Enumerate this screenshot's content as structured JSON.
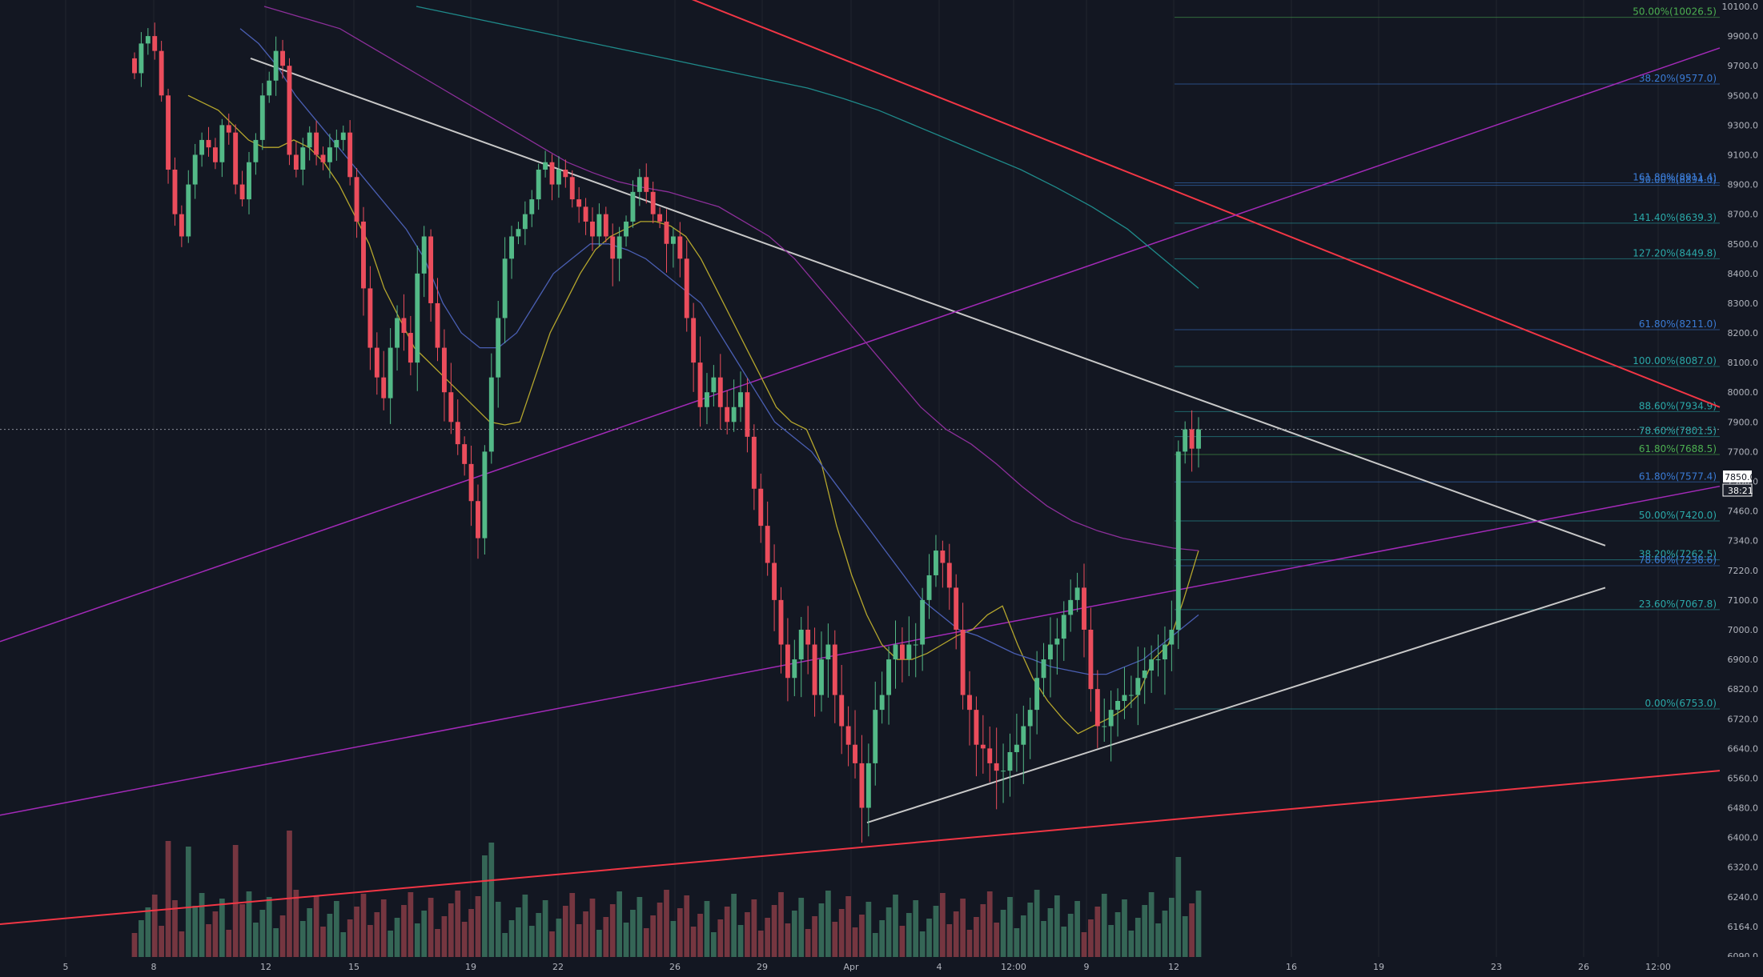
{
  "colors": {
    "background": "#131722",
    "bull": "#53b987",
    "bear": "#eb4d5c",
    "volume_bull": "#3e7a64",
    "volume_bear": "#8f3e49",
    "grid": "#2a2e39",
    "trendline": "#c8c8c8",
    "channel_red": "#f23645",
    "channel_purple": "#a32ab8",
    "ma_fast": "#b5a62d",
    "ma_mid": "#4a5fb3",
    "ma_slow": "#8c2f9a",
    "ma_long": "#1f8a8a",
    "fib_blue": "#3a7bd5",
    "fib_teal": "#2aa8a8",
    "fib_green": "#4caf50",
    "axis_text": "#b2b5be",
    "price_tag_bg": "#ffffff"
  },
  "chart_data": {
    "type": "candlestick",
    "title": "",
    "xlabel": "",
    "ylabel": "",
    "ylim": [
      6090,
      10100
    ],
    "x_tick_labels": [
      "5",
      "8",
      "12",
      "15",
      "19",
      "22",
      "26",
      "29",
      "Apr",
      "4",
      "12:00",
      "9",
      "12",
      "16",
      "19",
      "23",
      "26",
      "12:00"
    ],
    "y_tick_labels": [
      "10100.0",
      "9900.0",
      "9700.0",
      "9500.0",
      "9300.0",
      "9100.0",
      "8900.0",
      "8700.0",
      "8500.0",
      "8400.0",
      "8300.0",
      "8200.0",
      "8100.0",
      "8000.0",
      "7900.0",
      "7700.0",
      "7580.0",
      "7460.0",
      "7340.0",
      "7220.0",
      "7100.0",
      "7000.0",
      "6900.0",
      "6820.0",
      "6720.0",
      "6640.0",
      "6560.0",
      "6480.0",
      "6400.0",
      "6320.0",
      "6240.0",
      "6164.0",
      "6090.0"
    ],
    "last_price": "7850.0",
    "countdown": "38:21",
    "candles_close": [
      9650,
      9850,
      9900,
      9800,
      9500,
      9000,
      8700,
      8550,
      8900,
      9100,
      9200,
      9150,
      9050,
      9300,
      9250,
      8900,
      8800,
      9050,
      9200,
      9500,
      9600,
      9800,
      9700,
      9100,
      9000,
      9150,
      9250,
      9100,
      9050,
      9150,
      9200,
      9250,
      8950,
      8650,
      8350,
      8150,
      8050,
      7980,
      8150,
      8250,
      8200,
      8100,
      8400,
      8550,
      8300,
      8150,
      8000,
      7900,
      7750,
      7650,
      7500,
      7350,
      7700,
      8050,
      8250,
      8450,
      8550,
      8600,
      8700,
      8800,
      9000,
      9050,
      8900,
      9000,
      8950,
      8800,
      8750,
      8650,
      8550,
      8700,
      8550,
      8450,
      8550,
      8650,
      8850,
      8950,
      8850,
      8700,
      8650,
      8500,
      8550,
      8450,
      8250,
      8100,
      7950,
      8000,
      8050,
      7950,
      7900,
      7950,
      8000,
      7800,
      7550,
      7400,
      7250,
      7100,
      6950,
      6850,
      6900,
      7000,
      6950,
      6800,
      6900,
      6950,
      6800,
      6700,
      6650,
      6600,
      6480,
      6600,
      6750,
      6800,
      6900,
      6950,
      6900,
      6950,
      6950,
      7100,
      7200,
      7300,
      7250,
      7150,
      7000,
      6800,
      6750,
      6650,
      6640,
      6600,
      6580,
      6580,
      6630,
      6650,
      6700,
      6750,
      6850,
      6900,
      6950,
      6970,
      7050,
      7100,
      7150,
      7000,
      6820,
      6700,
      6700,
      6750,
      6780,
      6800,
      6800,
      6850,
      6870,
      6900,
      6900,
      6950,
      7000,
      7700,
      7850,
      7720,
      7850
    ],
    "series": [
      {
        "name": "",
        "kind": "ma_fast",
        "values": [
          9500,
          9450,
          9400,
          9300,
          9200,
          9150,
          9150,
          9200,
          9150,
          9050,
          8900,
          8700,
          8500,
          8350,
          8250,
          8150,
          8100,
          8050,
          8000,
          7950,
          7900,
          7880,
          7900,
          8050,
          8200,
          8300,
          8400,
          8480,
          8550,
          8600,
          8650,
          8650,
          8620,
          8550,
          8450,
          8350,
          8250,
          8150,
          8050,
          7950,
          7900,
          7850,
          7650,
          7400,
          7200,
          7050,
          6950,
          6900,
          6900,
          6920,
          6950,
          6980,
          7000,
          7050,
          7080,
          6950,
          6850,
          6780,
          6720,
          6680,
          6700,
          6720,
          6750,
          6800,
          6900,
          6950,
          7100,
          7300
        ]
      },
      {
        "name": "",
        "kind": "ma_mid",
        "values": [
          9950,
          9850,
          9700,
          9500,
          9350,
          9200,
          9050,
          8900,
          8750,
          8600,
          8450,
          8300,
          8200,
          8150,
          8150,
          8200,
          8300,
          8400,
          8450,
          8500,
          8500,
          8480,
          8450,
          8400,
          8350,
          8300,
          8200,
          8100,
          8000,
          7900,
          7800,
          7700,
          7600,
          7500,
          7400,
          7300,
          7200,
          7100,
          7050,
          7000,
          6980,
          6950,
          6920,
          6900,
          6880,
          6870,
          6860,
          6860,
          6880,
          6900,
          6950,
          7000,
          7050
        ]
      },
      {
        "name": "",
        "kind": "ma_slow",
        "values": [
          10100,
          10050,
          10000,
          9950,
          9850,
          9750,
          9650,
          9550,
          9450,
          9350,
          9250,
          9150,
          9050,
          8980,
          8920,
          8880,
          8850,
          8800,
          8750,
          8650,
          8550,
          8450,
          8350,
          8250,
          8150,
          8050,
          7950,
          7850,
          7750,
          7650,
          7560,
          7480,
          7420,
          7380,
          7350,
          7330,
          7310,
          7300
        ]
      },
      {
        "name": "",
        "kind": "ma_long",
        "values": [
          10100,
          10050,
          10000,
          9950,
          9900,
          9850,
          9800,
          9750,
          9700,
          9650,
          9600,
          9550,
          9480,
          9400,
          9300,
          9200,
          9100,
          9000,
          8880,
          8750,
          8600,
          8450,
          8350
        ]
      }
    ],
    "trendlines": [
      {
        "kind": "descending_white",
        "from_price": 9750,
        "to_price": 7320
      },
      {
        "kind": "ascending_white",
        "from_price": 6440,
        "to_price": 7150
      },
      {
        "kind": "red_down_main",
        "from_price": 10200,
        "to_price": 7950
      },
      {
        "kind": "red_up_main",
        "from_price": 6170,
        "to_price": 6580
      },
      {
        "kind": "purple_upper",
        "from_price": 6960,
        "to_price": 9820
      },
      {
        "kind": "purple_lower",
        "from_price": 6460,
        "to_price": 7560
      }
    ],
    "fib_levels": [
      {
        "label": "50.00%(10026.5)",
        "price": 10026.5,
        "color_key": "fib_green"
      },
      {
        "label": "38.20%(9577.0)",
        "price": 9577.0,
        "color_key": "fib_blue"
      },
      {
        "label": "161.80%(8911.4)",
        "price": 8911.4,
        "color_key": "fib_blue"
      },
      {
        "label": "50.00%(8894.0)",
        "price": 8894.0,
        "color_key": "fib_blue"
      },
      {
        "label": "141.40%(8639.3)",
        "price": 8639.3,
        "color_key": "fib_teal"
      },
      {
        "label": "127.20%(8449.8)",
        "price": 8449.8,
        "color_key": "fib_teal"
      },
      {
        "label": "61.80%(8211.0)",
        "price": 8211.0,
        "color_key": "fib_blue"
      },
      {
        "label": "100.00%(8087.0)",
        "price": 8087.0,
        "color_key": "fib_teal"
      },
      {
        "label": "88.60%(7934.9)",
        "price": 7934.9,
        "color_key": "fib_teal"
      },
      {
        "label": "78.60%(7801.5)",
        "price": 7801.5,
        "color_key": "fib_teal"
      },
      {
        "label": "61.80%(7688.5)",
        "price": 7688.5,
        "color_key": "fib_green"
      },
      {
        "label": "61.80%(7577.4)",
        "price": 7577.4,
        "color_key": "fib_blue"
      },
      {
        "label": "50.00%(7420.0)",
        "price": 7420.0,
        "color_key": "fib_teal"
      },
      {
        "label": "38.20%(7262.5)",
        "price": 7262.5,
        "color_key": "fib_teal"
      },
      {
        "label": "78.60%(7238.6)",
        "price": 7238.6,
        "color_key": "fib_blue"
      },
      {
        "label": "23.60%(7067.8)",
        "price": 7067.8,
        "color_key": "fib_teal"
      },
      {
        "label": "0.00%(6753.0)",
        "price": 6753.0,
        "color_key": "fib_teal"
      }
    ]
  }
}
